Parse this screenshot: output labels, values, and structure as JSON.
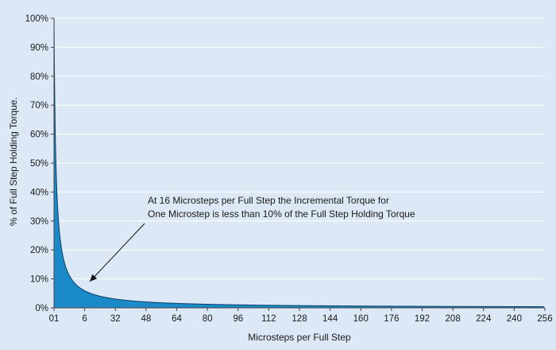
{
  "chart_data": {
    "type": "area",
    "xlabel": "Microsteps per Full Step",
    "ylabel": "% of Full Step Holding Torque.",
    "xlim": [
      1,
      256
    ],
    "ylim": [
      0,
      100
    ],
    "x_tick_labels": [
      "01",
      "6",
      "32",
      "48",
      "64",
      "80",
      "96",
      "112",
      "128",
      "144",
      "160",
      "176",
      "192",
      "208",
      "224",
      "240",
      "256"
    ],
    "y_tick_labels": [
      "0%",
      "10%",
      "20%",
      "30%",
      "40%",
      "50%",
      "60%",
      "70%",
      "80%",
      "90%",
      "100%"
    ],
    "y_tick_values": [
      0,
      10,
      20,
      30,
      40,
      50,
      60,
      70,
      80,
      90,
      100
    ],
    "series": [
      {
        "curve": "100 / x",
        "x": [
          1,
          2,
          3,
          4,
          6,
          8,
          16,
          32,
          64,
          128,
          256
        ],
        "values": [
          100,
          50,
          33.3,
          25,
          16.7,
          12.5,
          6.25,
          3.1,
          1.6,
          0.8,
          0.4
        ]
      }
    ],
    "annotation": {
      "lines": [
        "At 16 Microsteps per Full Step the Incremental Torque for",
        "One Microstep is less than 10% of the Full Step Holding Torque"
      ]
    },
    "grid": true,
    "colors": {
      "background": "#dce8f5",
      "plot_background": "#dce8f5",
      "fill": "#1a8ac9",
      "outline": "#0c3f66",
      "grid": "#ffffff",
      "axis": "#444444"
    }
  }
}
